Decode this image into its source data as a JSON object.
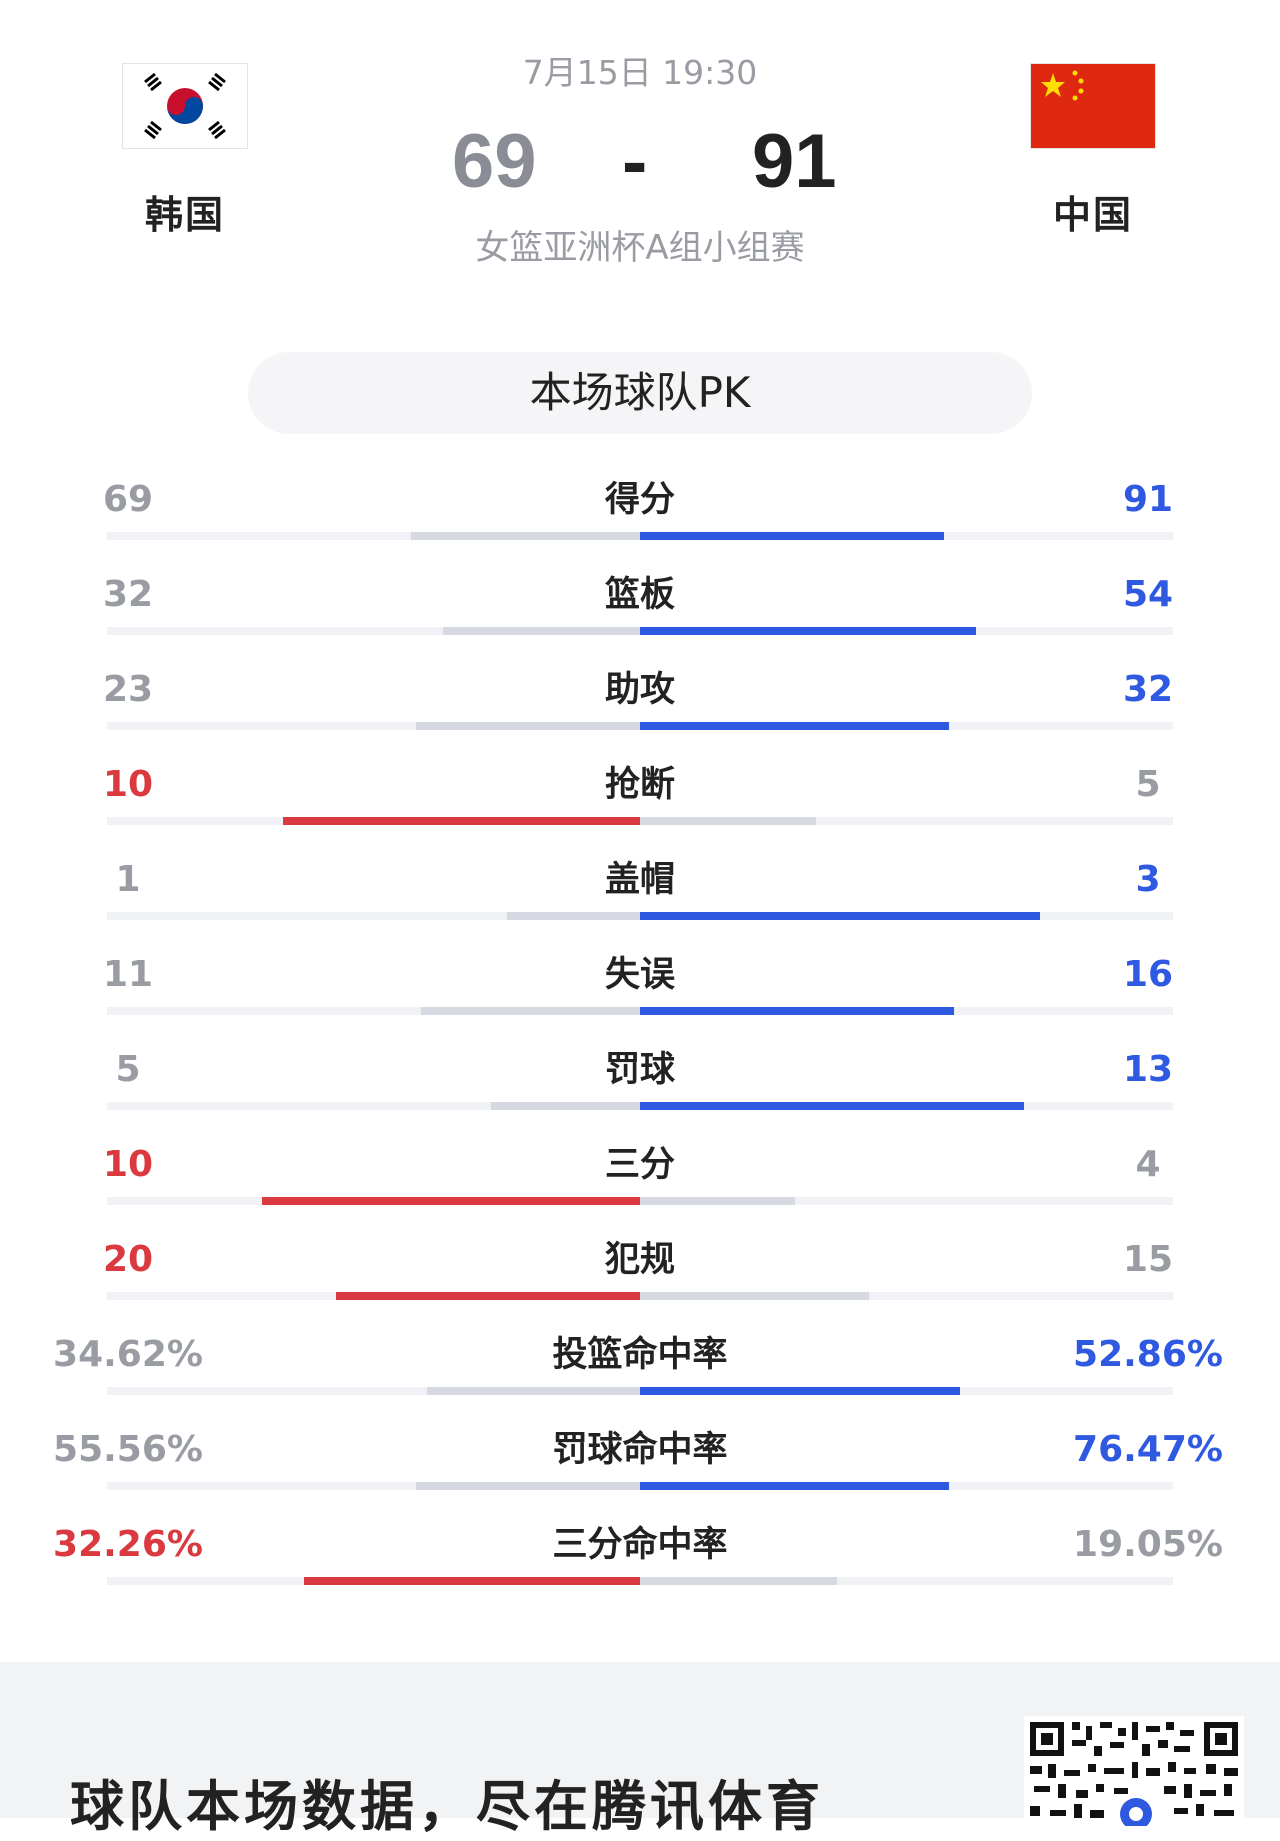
{
  "match": {
    "time": "7月15日 19:30",
    "home_team": "韩国",
    "away_team": "中国",
    "home_score": "69",
    "dash": "-",
    "away_score": "91",
    "competition": "女篮亚洲杯A组小组赛"
  },
  "pk_title": "本场球队PK",
  "colors": {
    "blue": "#2e59e0",
    "red": "#d9393f",
    "grey": "#9a9ca3"
  },
  "stats": [
    {
      "label": "得分",
      "home": "69",
      "away": "91",
      "home_frac": 0.43,
      "away_frac": 0.57,
      "winner": "away"
    },
    {
      "label": "篮板",
      "home": "32",
      "away": "54",
      "home_frac": 0.37,
      "away_frac": 0.63,
      "winner": "away"
    },
    {
      "label": "助攻",
      "home": "23",
      "away": "32",
      "home_frac": 0.42,
      "away_frac": 0.58,
      "winner": "away"
    },
    {
      "label": "抢断",
      "home": "10",
      "away": "5",
      "home_frac": 0.67,
      "away_frac": 0.33,
      "winner": "home"
    },
    {
      "label": "盖帽",
      "home": "1",
      "away": "3",
      "home_frac": 0.25,
      "away_frac": 0.75,
      "winner": "away"
    },
    {
      "label": "失误",
      "home": "11",
      "away": "16",
      "home_frac": 0.41,
      "away_frac": 0.59,
      "winner": "away"
    },
    {
      "label": "罚球",
      "home": "5",
      "away": "13",
      "home_frac": 0.28,
      "away_frac": 0.72,
      "winner": "away"
    },
    {
      "label": "三分",
      "home": "10",
      "away": "4",
      "home_frac": 0.71,
      "away_frac": 0.29,
      "winner": "home"
    },
    {
      "label": "犯规",
      "home": "20",
      "away": "15",
      "home_frac": 0.57,
      "away_frac": 0.43,
      "winner": "home"
    },
    {
      "label": "投篮命中率",
      "home": "34.62%",
      "away": "52.86%",
      "home_frac": 0.4,
      "away_frac": 0.6,
      "winner": "away"
    },
    {
      "label": "罚球命中率",
      "home": "55.56%",
      "away": "76.47%",
      "home_frac": 0.42,
      "away_frac": 0.58,
      "winner": "away"
    },
    {
      "label": "三分命中率",
      "home": "32.26%",
      "away": "19.05%",
      "home_frac": 0.63,
      "away_frac": 0.37,
      "winner": "home"
    }
  ],
  "footer": {
    "text": "球队本场数据，尽在腾讯体育",
    "qr_icon": "qr-code-icon"
  }
}
